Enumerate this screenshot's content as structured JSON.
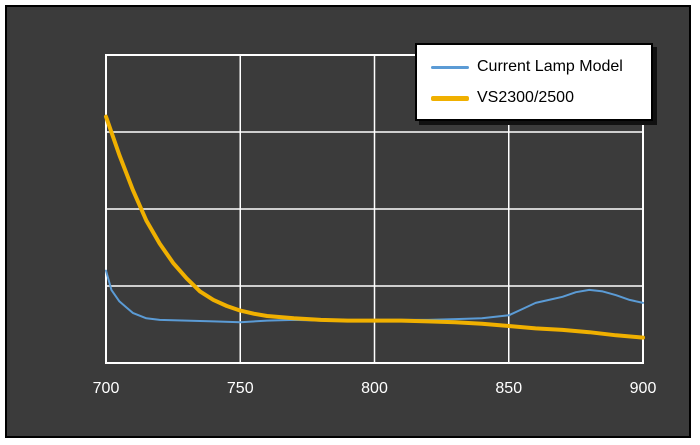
{
  "chart_data": {
    "type": "line",
    "title": "",
    "xlabel": "",
    "ylabel": "",
    "xlim": [
      700,
      900
    ],
    "ylim": [
      0,
      4
    ],
    "x_ticks": [
      "700",
      "750",
      "800",
      "850",
      "900"
    ],
    "grid": true,
    "legend_position": "top-right",
    "series": [
      {
        "name": "Current Lamp Model",
        "color": "#5b9bd5",
        "x": [
          700,
          702,
          705,
          710,
          715,
          720,
          730,
          740,
          750,
          760,
          770,
          780,
          790,
          800,
          810,
          820,
          830,
          840,
          850,
          855,
          860,
          865,
          870,
          875,
          880,
          885,
          890,
          895,
          900
        ],
        "y": [
          1.2,
          0.95,
          0.8,
          0.65,
          0.58,
          0.56,
          0.55,
          0.54,
          0.53,
          0.55,
          0.56,
          0.55,
          0.55,
          0.56,
          0.56,
          0.56,
          0.57,
          0.58,
          0.62,
          0.7,
          0.78,
          0.82,
          0.86,
          0.92,
          0.95,
          0.93,
          0.88,
          0.82,
          0.78
        ]
      },
      {
        "name": "VS2300/2500",
        "color": "#f0b000",
        "x": [
          700,
          705,
          710,
          715,
          720,
          725,
          730,
          735,
          740,
          745,
          750,
          755,
          760,
          770,
          780,
          790,
          800,
          810,
          820,
          830,
          840,
          850,
          860,
          870,
          880,
          890,
          900
        ],
        "y": [
          3.2,
          2.7,
          2.25,
          1.85,
          1.55,
          1.3,
          1.1,
          0.93,
          0.82,
          0.74,
          0.68,
          0.64,
          0.61,
          0.58,
          0.56,
          0.55,
          0.55,
          0.55,
          0.54,
          0.53,
          0.51,
          0.48,
          0.45,
          0.43,
          0.4,
          0.36,
          0.33
        ]
      }
    ]
  }
}
